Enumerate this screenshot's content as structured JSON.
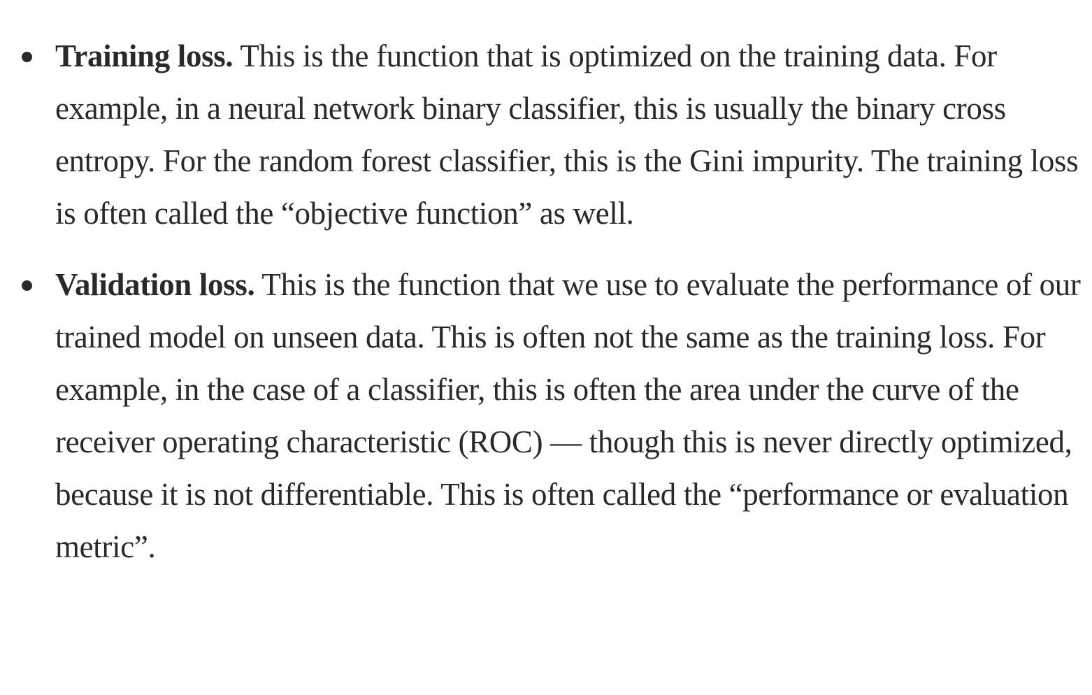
{
  "items": [
    {
      "term": "Training loss.",
      "text": " This is the function that is optimized on the training data. For example, in a neural network binary classifier, this is usually the binary cross entropy. For the random forest classifier, this is the Gini impurity. The training loss is often called the “objective function” as well."
    },
    {
      "term": "Validation loss.",
      "text": " This is the function that we use to evaluate the performance of our trained model on unseen data. This is often not the same as the training loss. For example, in the case of a classifier, this is often the area under the curve of the receiver operating characteristic (ROC) — though this is never directly optimized, because it is not differentiable. This is often called the “performance or evaluation metric”."
    }
  ]
}
